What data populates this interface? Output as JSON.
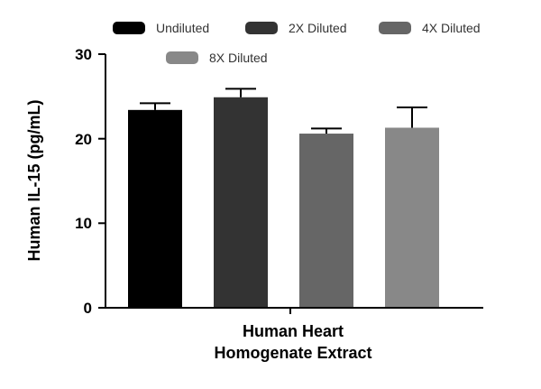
{
  "chart_data": {
    "type": "bar",
    "title": "",
    "xlabel_lines": [
      "Human Heart",
      "Homogenate Extract"
    ],
    "ylabel": "Human IL-15 (pg/mL)",
    "ylim": [
      0,
      30
    ],
    "yticks": [
      "0",
      "10",
      "20",
      "30"
    ],
    "category": "Human Heart Homogenate Extract",
    "series": [
      {
        "name": "Undiluted",
        "value": 23.4,
        "error": 0.8,
        "color": "#000000"
      },
      {
        "name": "2X Diluted",
        "value": 24.9,
        "error": 1.0,
        "color": "#333333"
      },
      {
        "name": "4X Diluted",
        "value": 20.6,
        "error": 0.6,
        "color": "#666666"
      },
      {
        "name": "8X Diluted",
        "value": 21.3,
        "error": 2.4,
        "color": "#888888"
      }
    ]
  }
}
